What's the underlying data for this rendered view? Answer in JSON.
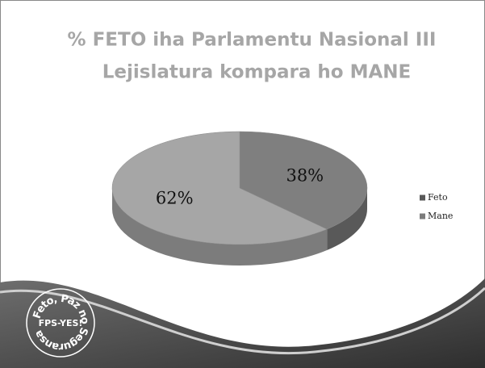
{
  "chart_data": {
    "type": "pie",
    "title": [
      "% FETO iha Parlamentu Nasional III",
      "Lejislatura kompara ho MANE"
    ],
    "categories": [
      "Feto",
      "Mane"
    ],
    "values": [
      38,
      62
    ],
    "value_labels": [
      "38%",
      "62%"
    ],
    "colors": [
      "#7f7f7f",
      "#a6a6a6"
    ],
    "side_colors": [
      "#595959",
      "#7c7c7c"
    ],
    "legend": "right"
  },
  "logo": {
    "ring_text": "Feto, Paz no Seguransa",
    "center_text": "FPS-YES!"
  }
}
